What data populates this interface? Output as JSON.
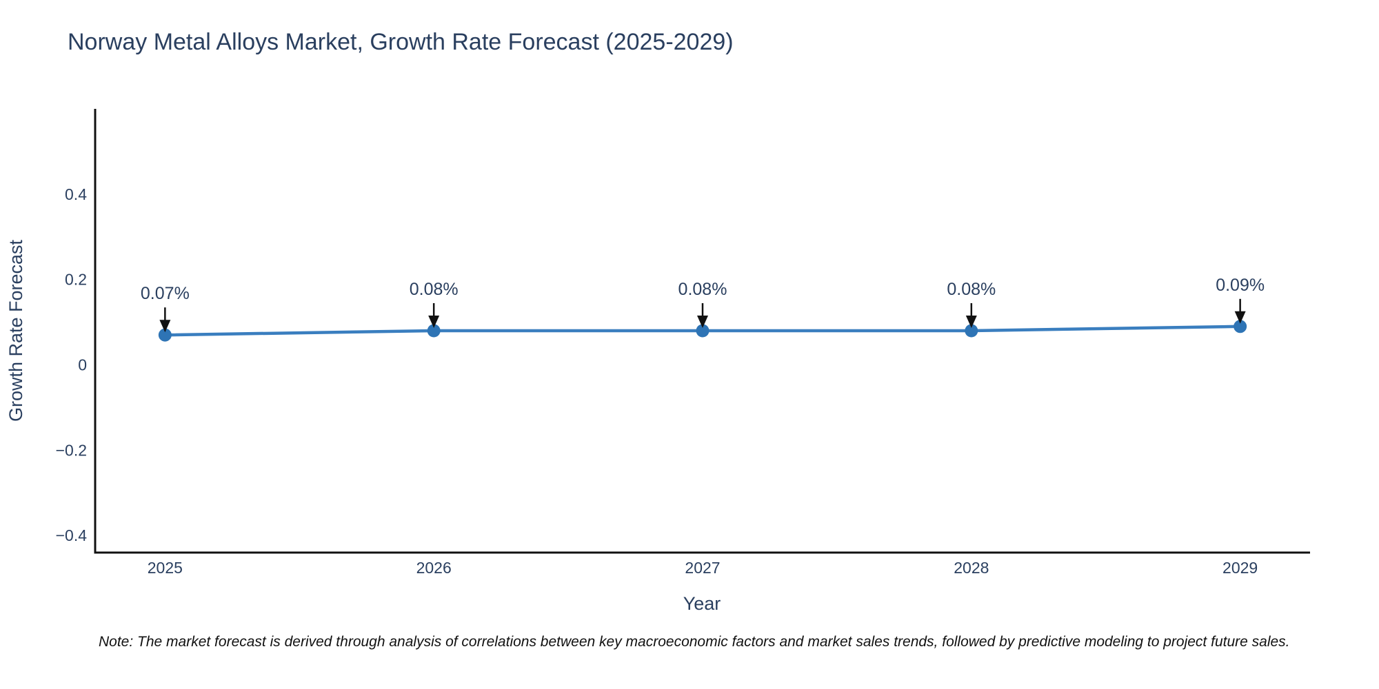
{
  "title": "Norway Metal Alloys Market, Growth Rate Forecast (2025-2029)",
  "note": "Note: The market forecast is derived through analysis of correlations between key macroeconomic factors and market sales trends, followed by predictive modeling to project future sales.",
  "chart_data": {
    "type": "line",
    "title": "Norway Metal Alloys Market, Growth Rate Forecast (2025-2029)",
    "xlabel": "Year",
    "ylabel": "Growth Rate Forecast",
    "x": [
      2025,
      2026,
      2027,
      2028,
      2029
    ],
    "series": [
      {
        "name": "Growth Rate Forecast",
        "values": [
          0.07,
          0.08,
          0.08,
          0.08,
          0.09
        ]
      }
    ],
    "point_labels": [
      "0.07%",
      "0.08%",
      "0.08%",
      "0.08%",
      "0.09%"
    ],
    "annotations_have_arrows": true,
    "xtick_labels": [
      "2025",
      "2026",
      "2027",
      "2028",
      "2029"
    ],
    "ytick_values": [
      0.4,
      0.2,
      0,
      -0.2,
      -0.4
    ],
    "ytick_labels": [
      "0.4",
      "0.2",
      "0",
      "−0.2",
      "−0.4"
    ],
    "xlim": [
      2024.74,
      2029.26
    ],
    "ylim": [
      -0.44,
      0.6
    ],
    "grid": false,
    "legend": "none",
    "colors": {
      "line": "#3a7ebf",
      "marker": "#2e74b5",
      "text": "#2a3f5f",
      "axis": "#111111",
      "arrow": "#111111"
    }
  }
}
